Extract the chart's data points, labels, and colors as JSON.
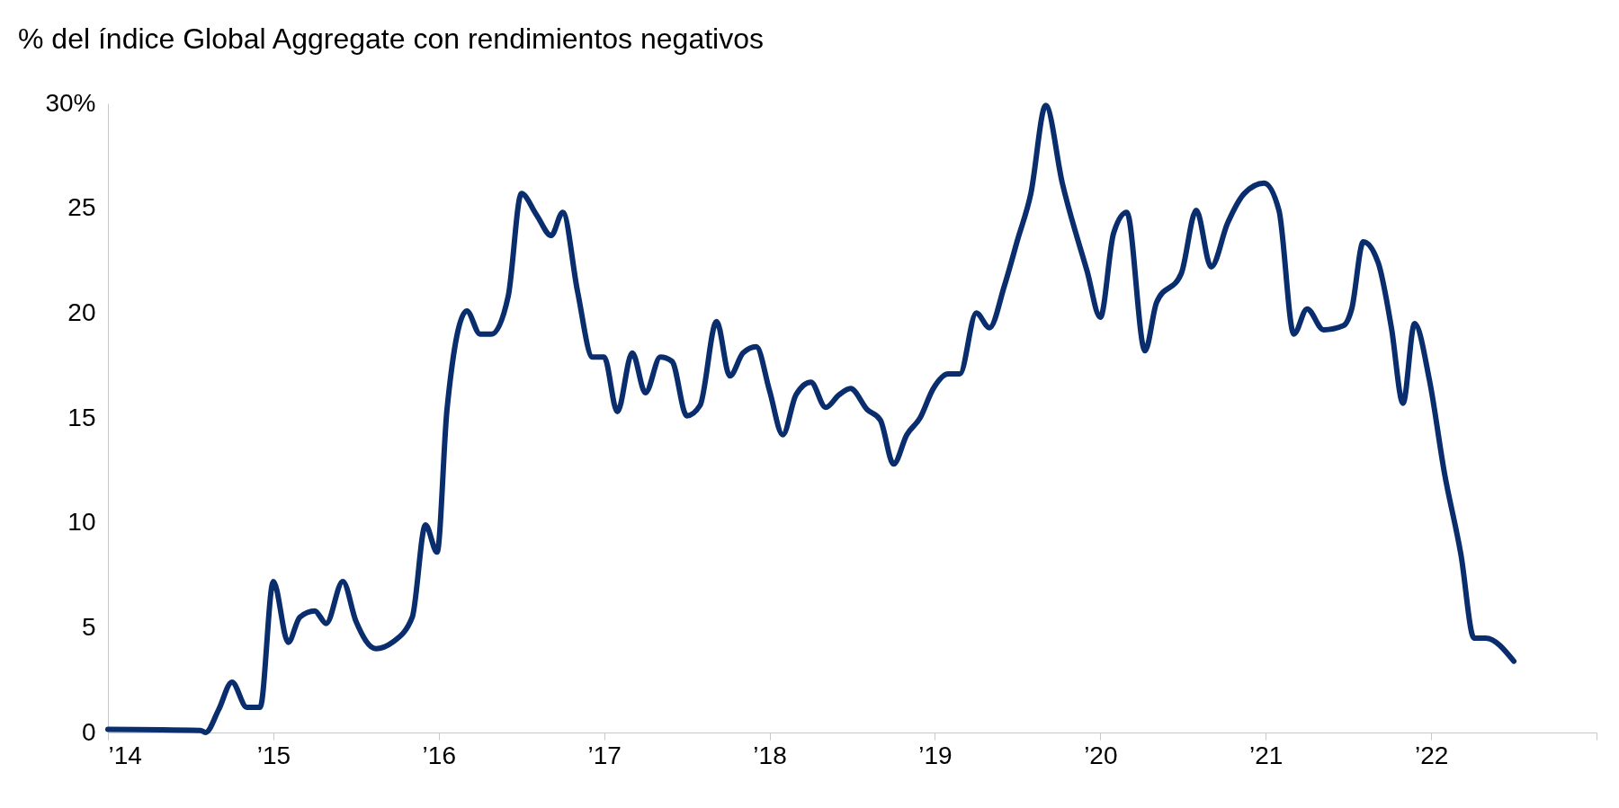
{
  "chart_data": {
    "type": "line",
    "title": "% del índice Global Aggregate con rendimientos negativos",
    "xlim": [
      2014,
      2023
    ],
    "xticks": [
      {
        "value": 2014,
        "label": "’14"
      },
      {
        "value": 2015,
        "label": "’15"
      },
      {
        "value": 2016,
        "label": "’16"
      },
      {
        "value": 2017,
        "label": "’17"
      },
      {
        "value": 2018,
        "label": "’18"
      },
      {
        "value": 2019,
        "label": "’19"
      },
      {
        "value": 2020,
        "label": "’20"
      },
      {
        "value": 2021,
        "label": "’21"
      },
      {
        "value": 2022,
        "label": "’22"
      },
      {
        "value": 2023,
        "label": null
      }
    ],
    "ylim": [
      0,
      30
    ],
    "yticks": [
      0,
      5,
      10,
      15,
      20,
      25,
      {
        "value": 30,
        "label": "30%"
      }
    ],
    "grid": false,
    "marker": "none",
    "line_style": "solid",
    "series": [
      {
        "color": "#0a2d6e",
        "x": [
          2014.0,
          2014.56,
          2014.59,
          2014.67,
          2014.75,
          2014.84,
          2014.92,
          2015.0,
          2015.09,
          2015.16,
          2015.25,
          2015.32,
          2015.42,
          2015.5,
          2015.62,
          2015.72,
          2015.84,
          2015.92,
          2015.99,
          2016.05,
          2016.17,
          2016.25,
          2016.32,
          2016.42,
          2016.5,
          2016.59,
          2016.68,
          2016.75,
          2016.84,
          2016.93,
          2017.0,
          2017.08,
          2017.17,
          2017.25,
          2017.34,
          2017.41,
          2017.5,
          2017.58,
          2017.68,
          2017.76,
          2017.84,
          2017.92,
          2018.0,
          2018.08,
          2018.16,
          2018.25,
          2018.34,
          2018.42,
          2018.49,
          2018.59,
          2018.67,
          2018.75,
          2018.83,
          2018.91,
          2018.99,
          2019.08,
          2019.15,
          2019.25,
          2019.33,
          2019.42,
          2019.5,
          2019.58,
          2019.67,
          2019.77,
          2019.92,
          2020.0,
          2020.08,
          2020.16,
          2020.27,
          2020.34,
          2020.49,
          2020.58,
          2020.67,
          2020.77,
          2020.87,
          2020.99,
          2021.08,
          2021.17,
          2021.25,
          2021.35,
          2021.47,
          2021.52,
          2021.59,
          2021.68,
          2021.76,
          2021.83,
          2021.9,
          2021.99,
          2022.08,
          2022.18,
          2022.26,
          2022.33,
          2022.5
        ],
        "values": [
          0.15,
          0.1,
          0,
          1.1,
          2.4,
          1.2,
          1.2,
          7.2,
          4.3,
          5.5,
          5.8,
          5.2,
          7.2,
          5.3,
          4.0,
          4.3,
          5.5,
          9.9,
          8.6,
          15.4,
          20.1,
          19,
          19,
          20.8,
          25.7,
          24.7,
          23.7,
          24.8,
          21,
          17.9,
          17.9,
          15.3,
          18.1,
          16.2,
          17.9,
          17.7,
          15.1,
          15.6,
          19.6,
          17.0,
          18.1,
          18.4,
          16.3,
          14.2,
          16.1,
          16.7,
          15.5,
          16.1,
          16.4,
          15.4,
          14.9,
          12.8,
          14.2,
          15,
          16.4,
          17.1,
          17.1,
          20,
          19.3,
          21.3,
          23.5,
          25.7,
          29.9,
          26.2,
          22.0,
          19.8,
          23.8,
          24.8,
          18.2,
          20.5,
          21.9,
          24.9,
          22.2,
          24.3,
          25.7,
          26.2,
          24.9,
          19,
          20.2,
          19.2,
          19.4,
          20.2,
          23.4,
          22.4,
          19.3,
          15.7,
          19.5,
          16.8,
          12.4,
          8.5,
          4.5,
          4.5,
          3.4
        ]
      }
    ]
  }
}
